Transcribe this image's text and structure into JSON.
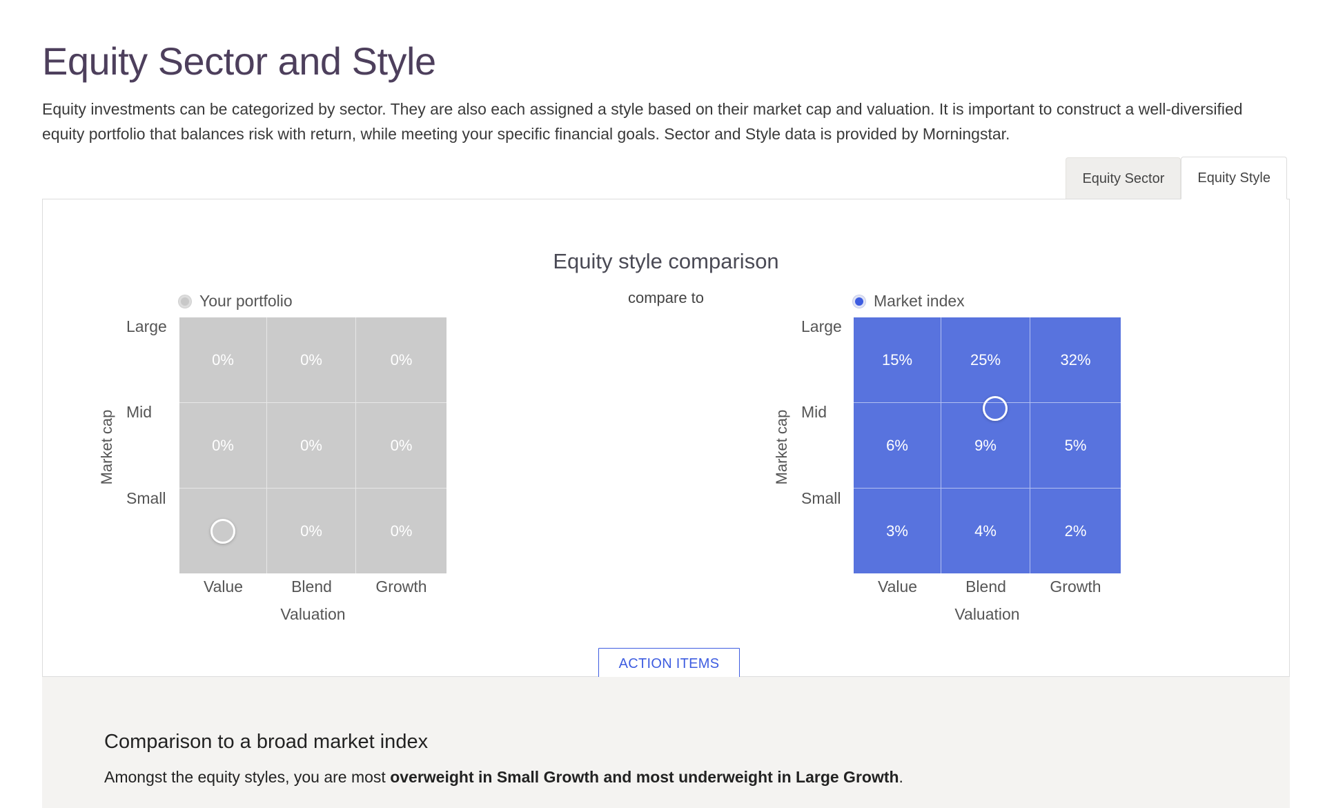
{
  "header": {
    "title": "Equity Sector and Style",
    "intro": "Equity investments can be categorized by sector. They are also each assigned a style based on their market cap and valuation. It is important to construct a well-diversified equity portfolio that balances risk with return, while meeting your specific financial goals. Sector and Style data is provided by Morningstar."
  },
  "tabs": [
    {
      "label": "Equity Sector",
      "active": false
    },
    {
      "label": "Equity Style",
      "active": true
    }
  ],
  "comparison": {
    "title": "Equity style comparison",
    "compare_to": "compare to",
    "action_button": "ACTION ITEMS",
    "left": {
      "radio_label": "Your portfolio",
      "selected": false,
      "y_axis_title": "Market cap",
      "x_axis_title": "Valuation",
      "rows": [
        "Large",
        "Mid",
        "Small"
      ],
      "columns": [
        "Value",
        "Blend",
        "Growth"
      ],
      "cells": [
        [
          "0%",
          "0%",
          "0%"
        ],
        [
          "0%",
          "0%",
          "0%"
        ],
        [
          "",
          "0%",
          "0%"
        ]
      ],
      "marker_cell": "Small Value",
      "color": "#cbcbcb"
    },
    "right": {
      "radio_label": "Market index",
      "selected": true,
      "y_axis_title": "Market cap",
      "x_axis_title": "Valuation",
      "rows": [
        "Large",
        "Mid",
        "Small"
      ],
      "columns": [
        "Value",
        "Blend",
        "Growth"
      ],
      "cells": [
        [
          "15%",
          "25%",
          "32%"
        ],
        [
          "6%",
          "9%",
          "5%"
        ],
        [
          "3%",
          "4%",
          "2%"
        ]
      ],
      "marker_cell": "Large/Mid Blend boundary",
      "color": "#5873de"
    }
  },
  "summary": {
    "heading": "Comparison to a broad market index",
    "text_prefix": "Amongst the equity styles, you are most ",
    "text_bold": "overweight in Small Growth and most underweight in Large Growth",
    "text_suffix": "."
  }
}
